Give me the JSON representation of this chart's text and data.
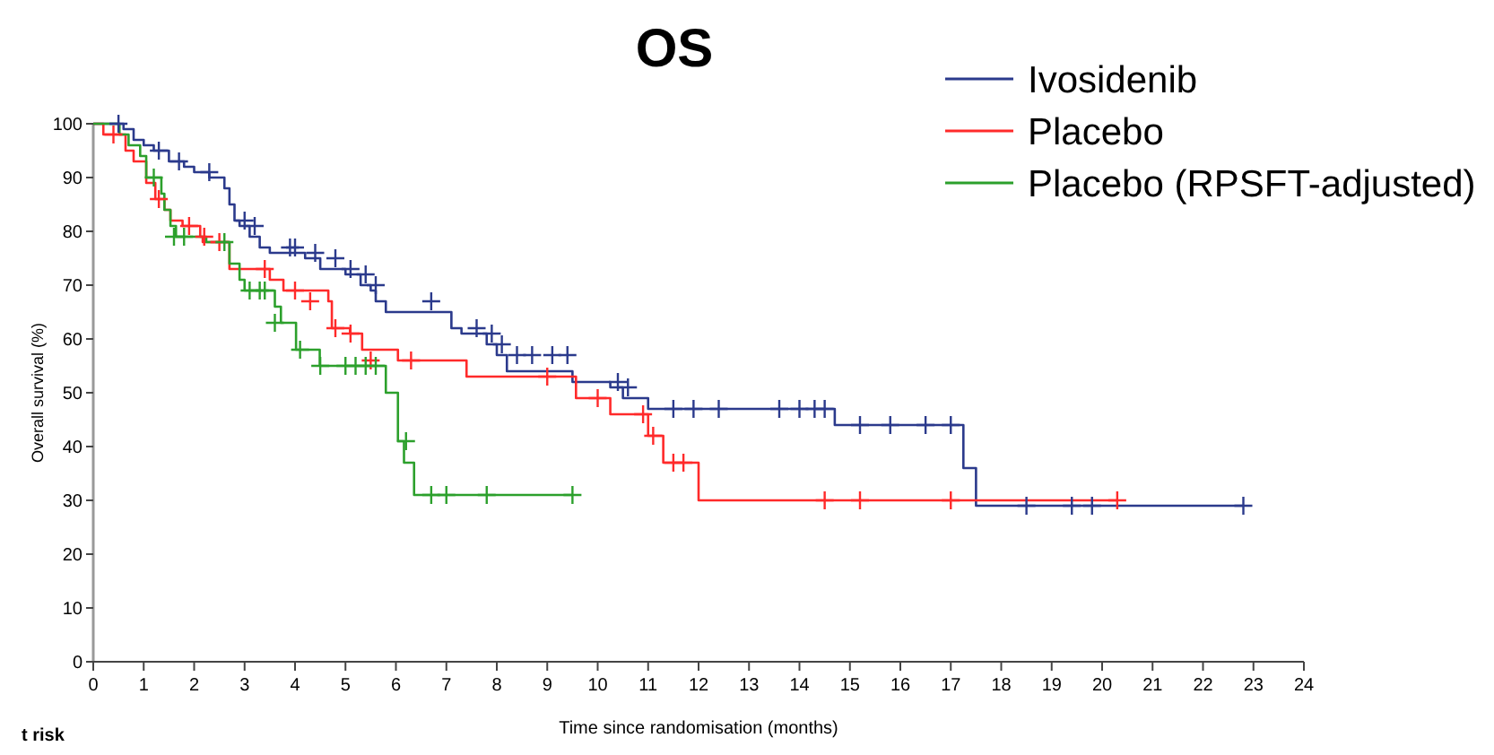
{
  "chart_data": {
    "type": "step",
    "title": "OS",
    "xlabel": "Time since randomisation (months)",
    "ylabel": "Overall survival (%)",
    "annotations": [
      "t risk"
    ],
    "xlim": [
      0,
      24
    ],
    "xticks": [
      0,
      1,
      2,
      3,
      4,
      5,
      6,
      7,
      8,
      9,
      10,
      11,
      12,
      13,
      14,
      15,
      16,
      17,
      18,
      19,
      20,
      21,
      22,
      23,
      24
    ],
    "ylim": [
      0,
      100
    ],
    "yticks": [
      0,
      10,
      20,
      30,
      40,
      50,
      60,
      70,
      80,
      90,
      100
    ],
    "grid": false,
    "legend": "top right",
    "line_style": "solid",
    "series": [
      {
        "name": "Ivosidenib",
        "color": "#2b3a8c",
        "x": [
          0,
          0.6,
          0.8,
          1.0,
          1.2,
          1.5,
          1.8,
          2.0,
          2.3,
          2.6,
          2.7,
          2.8,
          2.9,
          3.1,
          3.3,
          3.5,
          4.2,
          4.5,
          5.0,
          5.3,
          5.5,
          5.6,
          5.8,
          7.1,
          7.3,
          7.8,
          8.0,
          8.2,
          9.5,
          10.25,
          10.5,
          11.0,
          14.7,
          17.25,
          17.5,
          22.8
        ],
        "values": [
          100,
          99,
          97,
          96,
          95,
          93,
          92,
          91,
          90,
          88,
          85,
          82,
          81,
          79,
          77,
          76,
          75,
          73,
          72,
          70,
          69,
          67,
          65,
          62,
          61,
          59,
          57,
          54,
          52,
          51,
          49,
          47,
          44,
          36,
          29,
          29
        ]
      },
      {
        "name": "Placebo",
        "color": "#ff2a2a",
        "x": [
          0,
          0.2,
          0.64,
          0.8,
          1.05,
          1.23,
          1.41,
          1.53,
          1.77,
          2.12,
          2.17,
          2.7,
          3.5,
          3.77,
          4.66,
          4.73,
          5.09,
          5.33,
          6.04,
          7.4,
          9.57,
          10.25,
          11.0,
          11.3,
          12.0,
          20.3
        ],
        "values": [
          100,
          98,
          95,
          93,
          89,
          86,
          84,
          82,
          81,
          79,
          78,
          73,
          71,
          69,
          67,
          62,
          61,
          58,
          56,
          53,
          49,
          46,
          42,
          37,
          30,
          30
        ]
      },
      {
        "name": "Placebo (RPSFT-adjusted)",
        "color": "#2ca02c",
        "x": [
          0,
          0.52,
          0.7,
          0.93,
          1.05,
          1.35,
          1.41,
          1.53,
          1.64,
          2.24,
          2.7,
          2.9,
          3.0,
          3.6,
          3.72,
          4.02,
          4.49,
          5.8,
          6.04,
          6.16,
          6.36,
          9.5
        ],
        "values": [
          100,
          98,
          96,
          94,
          90,
          87,
          84,
          81,
          79,
          78,
          74,
          71,
          69,
          66,
          63,
          58,
          55,
          50,
          41,
          37,
          31,
          31
        ]
      },
      {
        "type": "scatter",
        "marker": "cross",
        "color": "#2b3a8c",
        "x": [
          0.5,
          1.3,
          1.7,
          2.3,
          3.0,
          3.2,
          3.9,
          4.0,
          4.4,
          4.8,
          5.1,
          5.4,
          5.6,
          6.7,
          7.6,
          7.9,
          8.1,
          8.4,
          8.7,
          9.1,
          9.4,
          10.4,
          10.6,
          11.5,
          11.9,
          12.4,
          13.6,
          14.0,
          14.3,
          14.5,
          15.2,
          15.8,
          16.5,
          17.0,
          18.5,
          19.4,
          19.8,
          22.8
        ],
        "values": [
          100,
          95,
          93,
          91,
          82,
          81,
          77,
          77,
          76,
          75,
          73,
          72,
          70,
          67,
          62,
          61,
          59,
          57,
          57,
          57,
          57,
          52,
          51,
          47,
          47,
          47,
          47,
          47,
          47,
          47,
          44,
          44,
          44,
          44,
          29,
          29,
          29,
          29
        ]
      },
      {
        "type": "scatter",
        "marker": "cross",
        "color": "#ff2a2a",
        "x": [
          0.4,
          1.3,
          1.9,
          2.2,
          2.5,
          3.4,
          4.0,
          4.3,
          4.8,
          5.1,
          5.5,
          6.3,
          9.0,
          10.0,
          10.9,
          11.1,
          11.5,
          11.7,
          14.5,
          15.2,
          17.0,
          20.3
        ],
        "values": [
          98,
          86,
          81,
          79,
          78,
          73,
          69,
          67,
          62,
          61,
          56,
          56,
          53,
          49,
          46,
          42,
          37,
          37,
          30,
          30,
          30,
          30
        ]
      },
      {
        "type": "scatter",
        "marker": "cross",
        "color": "#2ca02c",
        "x": [
          1.2,
          1.6,
          1.8,
          2.6,
          3.1,
          3.3,
          3.4,
          3.6,
          4.1,
          4.5,
          5.0,
          5.2,
          5.4,
          5.6,
          6.2,
          6.7,
          7.0,
          7.8,
          9.5
        ],
        "values": [
          90,
          79,
          79,
          78,
          69,
          69,
          69,
          63,
          58,
          55,
          55,
          55,
          55,
          55,
          41,
          31,
          31,
          31,
          31
        ]
      }
    ]
  }
}
